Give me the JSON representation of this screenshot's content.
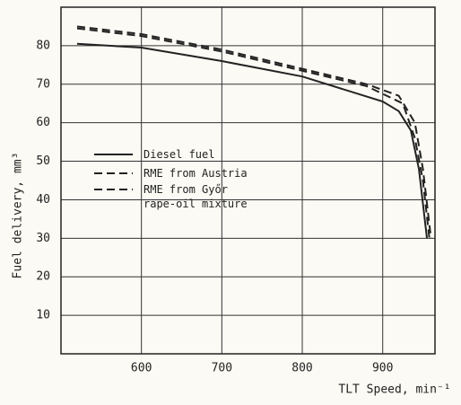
{
  "chart_data": {
    "type": "line",
    "xlabel": "TLT Speed, min⁻¹",
    "ylabel": "Fuel delivery, mm³",
    "xlim": [
      500,
      965
    ],
    "xticks": [
      600,
      700,
      800,
      900
    ],
    "ylim": [
      0,
      90
    ],
    "yticks": [
      10,
      20,
      30,
      40,
      50,
      60,
      70,
      80
    ],
    "grid": true,
    "legend": "left",
    "series": [
      {
        "name": "Diesel fuel",
        "color": "#222222",
        "dash": "solid",
        "x": [
          520,
          600,
          700,
          800,
          900,
          920,
          935,
          945,
          955
        ],
        "values": [
          80.5,
          79.5,
          76,
          72,
          65.5,
          63,
          58,
          48,
          30
        ]
      },
      {
        "name": "RME from Austria",
        "color": "#222222",
        "dash": "dashed",
        "x": [
          520,
          600,
          700,
          800,
          880,
          920,
          940,
          950,
          960
        ],
        "values": [
          85,
          83,
          79,
          74,
          70,
          67,
          60,
          48,
          30
        ]
      },
      {
        "name": "RME from Győr rape-oil mixture",
        "color": "#222222",
        "dash": "dashed",
        "x": [
          520,
          600,
          700,
          800,
          880,
          925,
          940,
          950,
          958
        ],
        "values": [
          84.5,
          82.5,
          78.5,
          73.5,
          69.5,
          65,
          56,
          45,
          30
        ]
      }
    ]
  }
}
